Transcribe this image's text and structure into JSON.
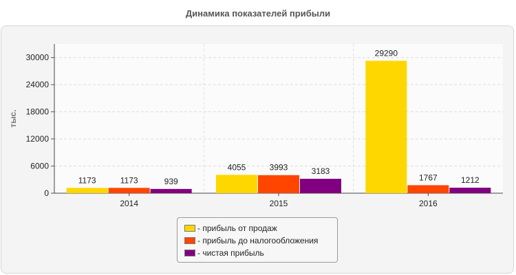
{
  "chart_data": {
    "type": "bar",
    "title": "Динамика показателей прибыли",
    "ylabel": "тыс.",
    "xlabel": "",
    "categories": [
      "2014",
      "2015",
      "2016"
    ],
    "ylim": [
      0,
      33000
    ],
    "yticks": [
      0,
      6000,
      12000,
      18000,
      24000,
      30000
    ],
    "grid": true,
    "legend_position": "bottom-center",
    "series": [
      {
        "name": "- прибыль от продаж",
        "color": "#FFD700",
        "values": [
          1173,
          4055,
          29290
        ]
      },
      {
        "name": "- прибыль до налогообложения",
        "color": "#FF4500",
        "values": [
          1173,
          3993,
          1767
        ]
      },
      {
        "name": "- чистая прибыль",
        "color": "#800080",
        "values": [
          939,
          3183,
          1212
        ]
      }
    ]
  }
}
